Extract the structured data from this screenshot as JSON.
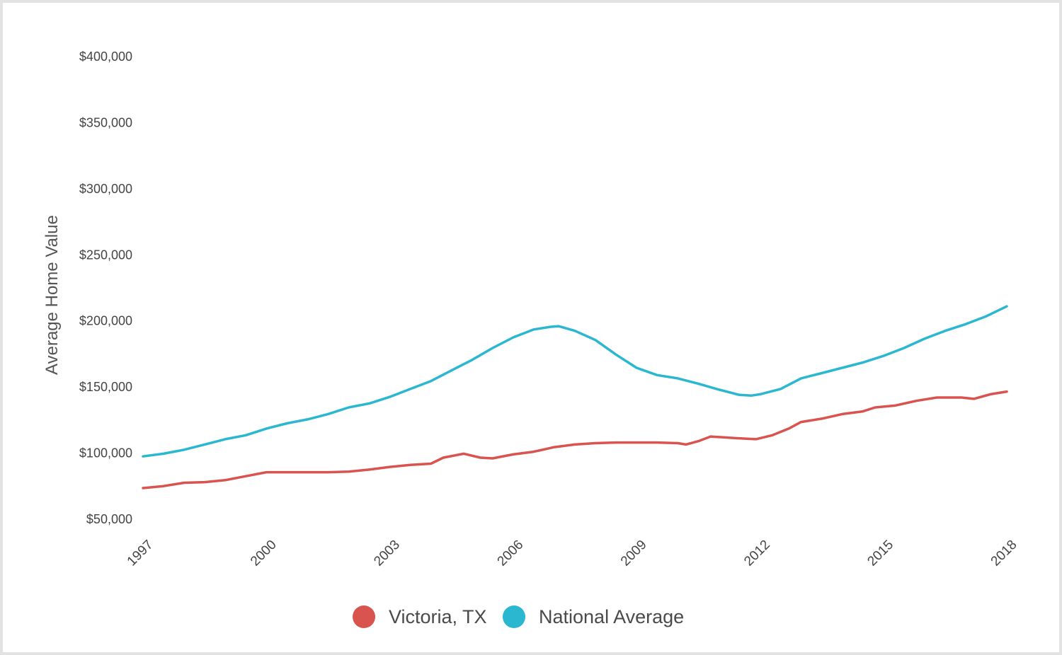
{
  "chart_data": {
    "type": "line",
    "ylabel": "Average Home Value",
    "xlabel": "",
    "ylim": [
      50000,
      400000
    ],
    "xlim": [
      1997.0,
      2018.0
    ],
    "y_ticks": [
      {
        "value": 400000,
        "label": "$400,000"
      },
      {
        "value": 350000,
        "label": "$350,000"
      },
      {
        "value": 300000,
        "label": "$300,000"
      },
      {
        "value": 250000,
        "label": "$250,000"
      },
      {
        "value": 200000,
        "label": "$200,000"
      },
      {
        "value": 150000,
        "label": "$150,000"
      },
      {
        "value": 100000,
        "label": "$100,000"
      },
      {
        "value": 50000,
        "label": "$50,000"
      }
    ],
    "x_ticks": [
      {
        "value": 1997,
        "label": "1997"
      },
      {
        "value": 2000,
        "label": "2000"
      },
      {
        "value": 2003,
        "label": "2003"
      },
      {
        "value": 2006,
        "label": "2006"
      },
      {
        "value": 2009,
        "label": "2009"
      },
      {
        "value": 2012,
        "label": "2012"
      },
      {
        "value": 2015,
        "label": "2015"
      },
      {
        "value": 2018,
        "label": "2018"
      }
    ],
    "grid": false,
    "legend_position": "bottom-center",
    "series": [
      {
        "name": "Victoria, TX",
        "color": "#d9534f",
        "points": [
          [
            1997.0,
            73000
          ],
          [
            1997.5,
            74500
          ],
          [
            1998.0,
            77000
          ],
          [
            1998.5,
            77500
          ],
          [
            1999.0,
            79000
          ],
          [
            1999.5,
            82000
          ],
          [
            2000.0,
            85000
          ],
          [
            2000.5,
            85000
          ],
          [
            2001.0,
            85000
          ],
          [
            2001.5,
            85000
          ],
          [
            2002.0,
            85500
          ],
          [
            2002.5,
            87000
          ],
          [
            2003.0,
            89000
          ],
          [
            2003.5,
            90500
          ],
          [
            2004.0,
            91500
          ],
          [
            2004.3,
            96000
          ],
          [
            2004.8,
            99000
          ],
          [
            2005.2,
            96000
          ],
          [
            2005.5,
            95500
          ],
          [
            2006.0,
            98500
          ],
          [
            2006.5,
            100500
          ],
          [
            2007.0,
            104000
          ],
          [
            2007.5,
            106000
          ],
          [
            2008.0,
            107000
          ],
          [
            2008.5,
            107500
          ],
          [
            2009.0,
            107500
          ],
          [
            2009.5,
            107500
          ],
          [
            2010.0,
            107000
          ],
          [
            2010.2,
            106000
          ],
          [
            2010.5,
            108500
          ],
          [
            2010.8,
            112000
          ],
          [
            2011.3,
            111000
          ],
          [
            2011.6,
            110500
          ],
          [
            2011.9,
            110000
          ],
          [
            2012.3,
            113000
          ],
          [
            2012.7,
            118000
          ],
          [
            2013.0,
            123000
          ],
          [
            2013.5,
            125500
          ],
          [
            2014.0,
            129000
          ],
          [
            2014.5,
            131000
          ],
          [
            2014.8,
            134000
          ],
          [
            2015.3,
            135500
          ],
          [
            2015.8,
            139000
          ],
          [
            2016.3,
            141500
          ],
          [
            2016.9,
            141500
          ],
          [
            2017.2,
            140500
          ],
          [
            2017.6,
            144000
          ],
          [
            2018.0,
            146000
          ]
        ]
      },
      {
        "name": "National Average",
        "color": "#2bb7d0",
        "points": [
          [
            1997.0,
            97000
          ],
          [
            1997.5,
            99000
          ],
          [
            1998.0,
            102000
          ],
          [
            1998.5,
            106000
          ],
          [
            1999.0,
            110000
          ],
          [
            1999.5,
            113000
          ],
          [
            2000.0,
            118000
          ],
          [
            2000.5,
            122000
          ],
          [
            2001.0,
            125000
          ],
          [
            2001.5,
            129000
          ],
          [
            2002.0,
            134000
          ],
          [
            2002.5,
            137000
          ],
          [
            2003.0,
            142000
          ],
          [
            2003.5,
            148000
          ],
          [
            2004.0,
            154000
          ],
          [
            2004.5,
            162000
          ],
          [
            2005.0,
            170000
          ],
          [
            2005.5,
            179000
          ],
          [
            2006.0,
            187000
          ],
          [
            2006.5,
            193000
          ],
          [
            2006.9,
            195000
          ],
          [
            2007.1,
            195500
          ],
          [
            2007.5,
            192000
          ],
          [
            2008.0,
            185000
          ],
          [
            2008.5,
            174000
          ],
          [
            2009.0,
            164000
          ],
          [
            2009.5,
            158500
          ],
          [
            2010.0,
            156000
          ],
          [
            2010.5,
            152000
          ],
          [
            2011.0,
            147500
          ],
          [
            2011.5,
            143500
          ],
          [
            2011.8,
            143000
          ],
          [
            2012.0,
            144000
          ],
          [
            2012.5,
            148000
          ],
          [
            2013.0,
            156000
          ],
          [
            2013.5,
            160000
          ],
          [
            2014.0,
            164000
          ],
          [
            2014.5,
            168000
          ],
          [
            2015.0,
            173000
          ],
          [
            2015.5,
            179000
          ],
          [
            2016.0,
            186000
          ],
          [
            2016.5,
            192000
          ],
          [
            2017.0,
            197000
          ],
          [
            2017.5,
            203000
          ],
          [
            2018.0,
            210500
          ]
        ]
      }
    ]
  }
}
